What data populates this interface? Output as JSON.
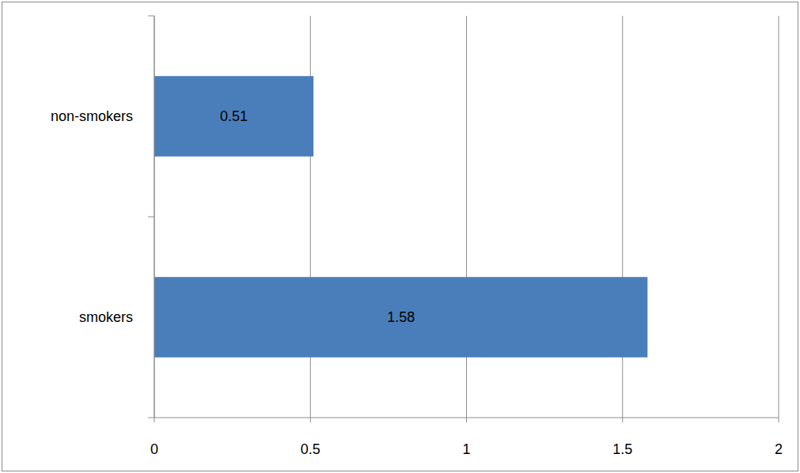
{
  "chart_data": {
    "type": "bar",
    "orientation": "horizontal",
    "categories": [
      "non-smokers",
      "smokers"
    ],
    "values": [
      0.51,
      1.58
    ],
    "color": "#4a7ebb",
    "xlim": [
      0,
      2
    ],
    "xticks": [
      0,
      0.5,
      1,
      1.5,
      2
    ],
    "grid": true,
    "data_labels": true
  }
}
